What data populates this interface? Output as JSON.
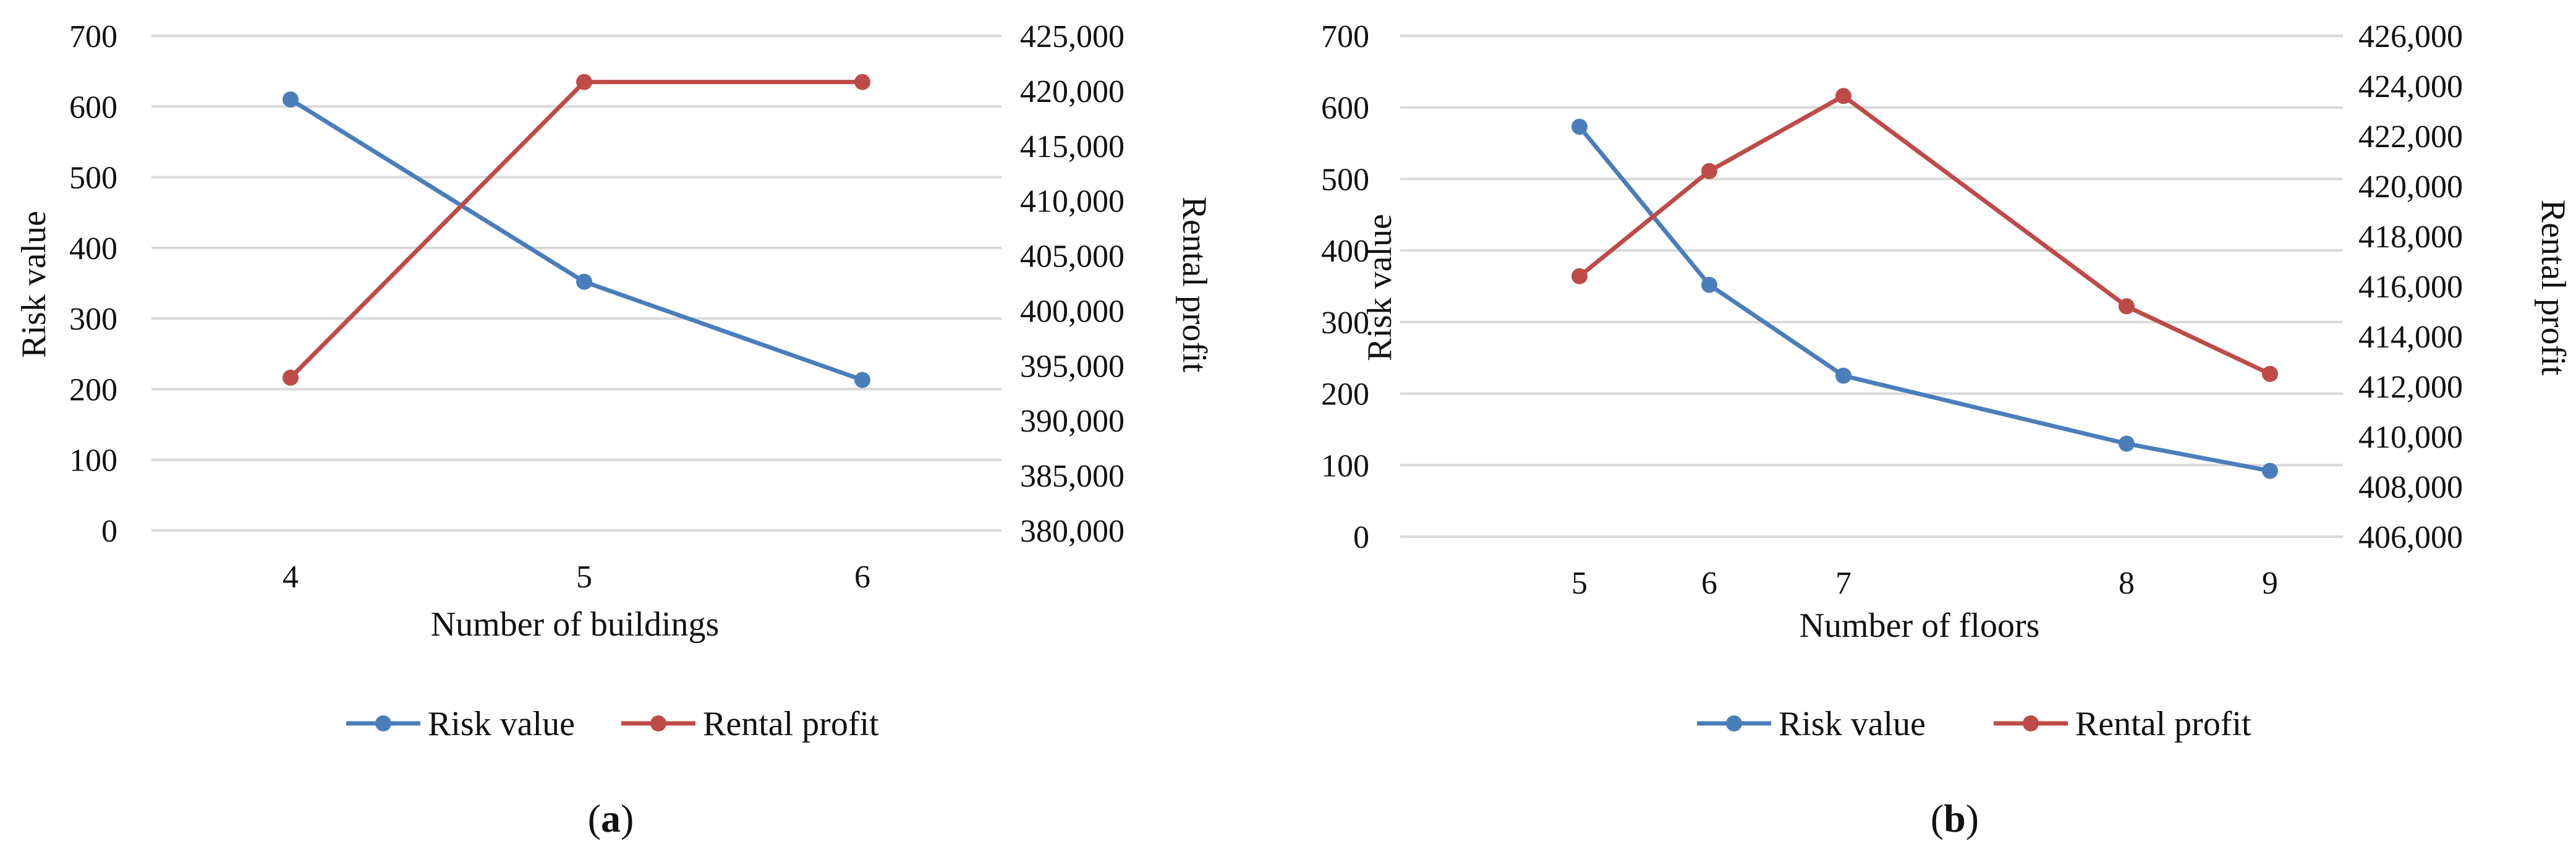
{
  "colors": {
    "risk": "#4a7ebb",
    "rental": "#be4b48",
    "grid": "#d9d9d9"
  },
  "chart_data": [
    {
      "type": "line",
      "panel_label": "(a)",
      "panel_letter": "a",
      "xlabel": "Number of buildings",
      "ylabel_left": "Risk value",
      "ylabel_right": "Rental profit",
      "x": [
        4,
        5,
        6
      ],
      "x_tick_labels": [
        "4",
        "5",
        "6"
      ],
      "ylim_left": [
        0,
        700
      ],
      "y_ticks_left": [
        "0",
        "100",
        "200",
        "300",
        "400",
        "500",
        "600",
        "700"
      ],
      "ylim_right": [
        380000,
        425000
      ],
      "y_ticks_right": [
        "380,000",
        "385,000",
        "390,000",
        "395,000",
        "400,000",
        "405,000",
        "410,000",
        "415,000",
        "420,000",
        "425,000"
      ],
      "grid": true,
      "legend_position": "bottom",
      "series": [
        {
          "name": "Risk value",
          "axis": "left",
          "values": [
            610,
            352,
            213
          ]
        },
        {
          "name": "Rental profit",
          "axis": "right",
          "values": [
            393900,
            420800,
            420800
          ]
        }
      ]
    },
    {
      "type": "line",
      "panel_label": "(b)",
      "panel_letter": "b",
      "xlabel": "Number of floors",
      "ylabel_left": "Risk value",
      "ylabel_right": "Rental profit",
      "x": [
        5,
        6,
        7,
        8,
        9
      ],
      "x_tick_labels": [
        "5",
        "6",
        "7",
        "8",
        "9"
      ],
      "ylim_left": [
        0,
        700
      ],
      "y_ticks_left": [
        "0",
        "100",
        "200",
        "300",
        "400",
        "500",
        "600",
        "700"
      ],
      "ylim_right": [
        406000,
        426000
      ],
      "y_ticks_right": [
        "406,000",
        "408,000",
        "410,000",
        "412,000",
        "414,000",
        "416,000",
        "418,000",
        "420,000",
        "422,000",
        "424,000",
        "426,000"
      ],
      "grid": true,
      "legend_position": "bottom",
      "series": [
        {
          "name": "Risk value",
          "axis": "left",
          "values": [
            573,
            352,
            225,
            130,
            92
          ]
        },
        {
          "name": "Rental profit",
          "axis": "right",
          "values": [
            416400,
            420600,
            423600,
            415200,
            412500
          ]
        }
      ]
    }
  ]
}
